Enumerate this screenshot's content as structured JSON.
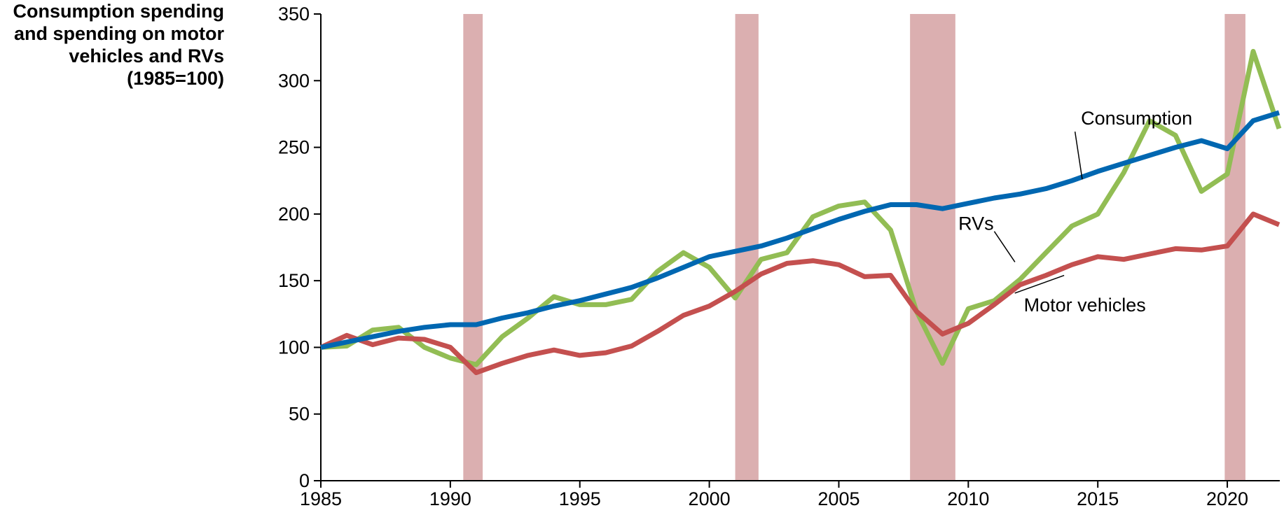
{
  "chart_data": {
    "type": "line",
    "ylabel_lines": [
      "Consumption spending",
      "and spending on motor",
      "vehicles and RVs",
      "(1985=100)"
    ],
    "xlim": [
      1985,
      2022
    ],
    "ylim": [
      0,
      350
    ],
    "xticks": [
      1985,
      1990,
      1995,
      2000,
      2005,
      2010,
      2015,
      2020
    ],
    "yticks": [
      0,
      50,
      100,
      150,
      200,
      250,
      300,
      350
    ],
    "grid": false,
    "legend": "inline labels",
    "recessions": [
      [
        1990.5,
        1991.25
      ],
      [
        2001.0,
        2001.9
      ],
      [
        2007.75,
        2009.5
      ],
      [
        2019.9,
        2020.7
      ]
    ],
    "x": [
      1985,
      1986,
      1987,
      1988,
      1989,
      1990,
      1991,
      1992,
      1993,
      1994,
      1995,
      1996,
      1997,
      1998,
      1999,
      2000,
      2001,
      2002,
      2003,
      2004,
      2005,
      2006,
      2007,
      2008,
      2009,
      2010,
      2011,
      2012,
      2013,
      2014,
      2015,
      2016,
      2017,
      2018,
      2019,
      2020,
      2021,
      2022
    ],
    "series": [
      {
        "name": "Consumption",
        "color": "#0067b1",
        "values": [
          100,
          104,
          108,
          112,
          115,
          117,
          117,
          122,
          126,
          131,
          135,
          140,
          145,
          152,
          160,
          168,
          172,
          176,
          182,
          189,
          196,
          202,
          207,
          207,
          204,
          208,
          212,
          215,
          219,
          225,
          232,
          238,
          244,
          250,
          255,
          249,
          270,
          276
        ]
      },
      {
        "name": "RVs",
        "color": "#92bd54",
        "values": [
          100,
          101,
          113,
          115,
          100,
          92,
          87,
          108,
          122,
          138,
          132,
          132,
          136,
          157,
          171,
          160,
          137,
          166,
          171,
          198,
          206,
          209,
          188,
          127,
          88,
          129,
          135,
          151,
          171,
          191,
          200,
          231,
          270,
          259,
          217,
          230,
          322,
          264
        ]
      },
      {
        "name": "Motor vehicles",
        "color": "#c4504f",
        "values": [
          100,
          109,
          102,
          107,
          106,
          100,
          81,
          88,
          94,
          98,
          94,
          96,
          101,
          112,
          124,
          131,
          142,
          155,
          163,
          165,
          162,
          153,
          154,
          127,
          110,
          118,
          132,
          147,
          154,
          162,
          168,
          166,
          170,
          174,
          173,
          176,
          200,
          192
        ]
      }
    ],
    "annotations": [
      {
        "text": "Consumption",
        "series": "Consumption",
        "at": [
          2016.5,
          267
        ],
        "target": [
          2014.4,
          226
        ]
      },
      {
        "text": "RVs",
        "series": "RVs",
        "at": [
          2010.3,
          188
        ],
        "target": [
          2011.8,
          164
        ]
      },
      {
        "text": "Motor vehicles",
        "series": "Motor vehicles",
        "at": [
          2014.5,
          127
        ],
        "target": [
          2013.7,
          154
        ]
      }
    ]
  }
}
